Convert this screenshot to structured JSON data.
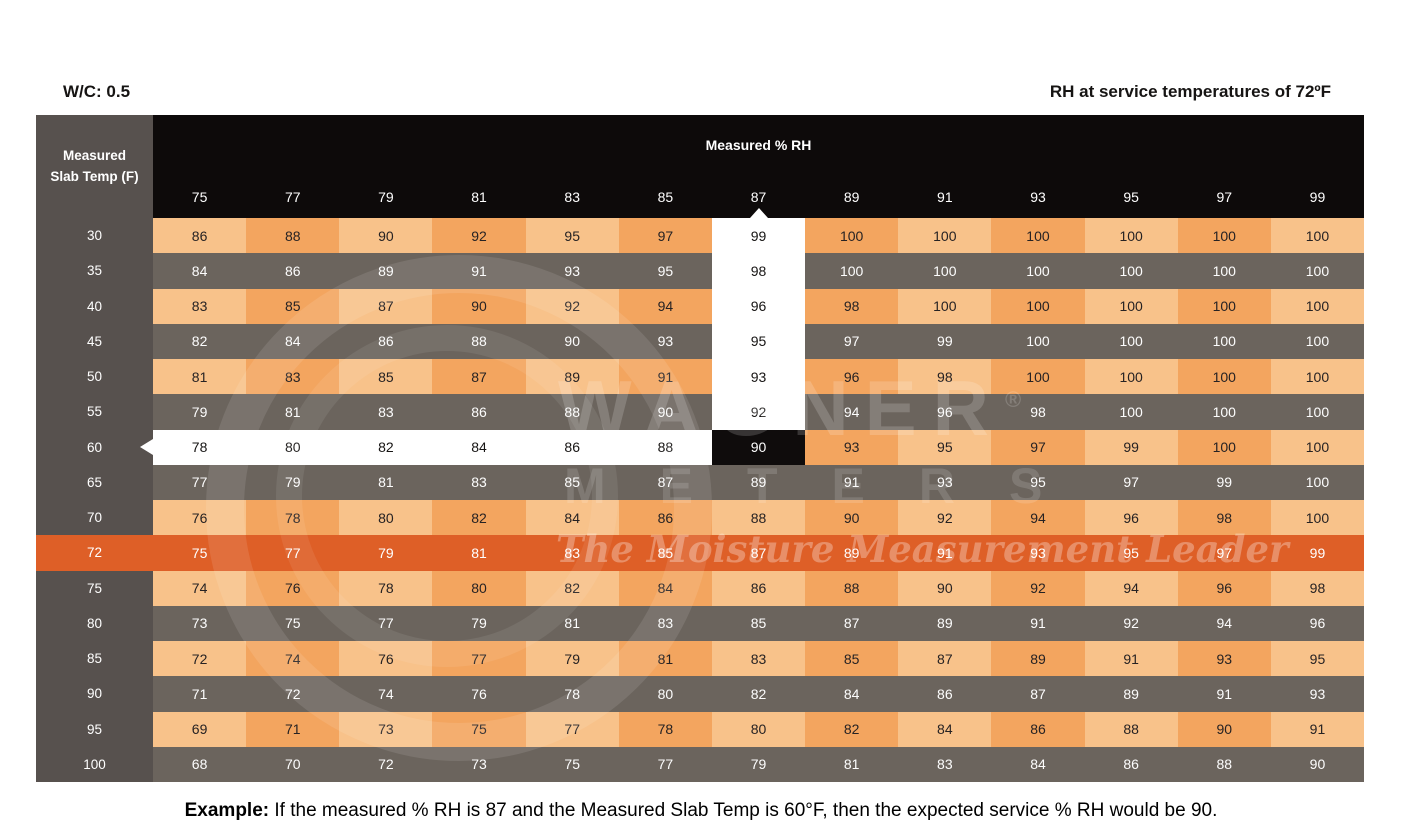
{
  "page": {
    "wc_label": "W/C: 0.5",
    "title_right": "RH at service temperatures of 72ºF"
  },
  "chart_data": {
    "type": "table",
    "title": "RH at service temperatures of 72ºF",
    "water_cement_ratio_label": "W/C: 0.5",
    "columns_group_label": "Measured % RH",
    "row_header_line1": "Measured",
    "row_header_line2": "Slab Temp (F)",
    "columns": [
      75,
      77,
      79,
      81,
      83,
      85,
      87,
      89,
      91,
      93,
      95,
      97,
      99
    ],
    "rows": [
      {
        "label": 30,
        "type": "orange",
        "values": [
          86,
          88,
          90,
          92,
          95,
          97,
          99,
          100,
          100,
          100,
          100,
          100,
          100
        ]
      },
      {
        "label": 35,
        "type": "gray",
        "values": [
          84,
          86,
          89,
          91,
          93,
          95,
          98,
          100,
          100,
          100,
          100,
          100,
          100
        ]
      },
      {
        "label": 40,
        "type": "orange",
        "values": [
          83,
          85,
          87,
          90,
          92,
          94,
          96,
          98,
          100,
          100,
          100,
          100,
          100
        ]
      },
      {
        "label": 45,
        "type": "gray",
        "values": [
          82,
          84,
          86,
          88,
          90,
          93,
          95,
          97,
          99,
          100,
          100,
          100,
          100
        ]
      },
      {
        "label": 50,
        "type": "orange",
        "values": [
          81,
          83,
          85,
          87,
          89,
          91,
          93,
          96,
          98,
          100,
          100,
          100,
          100
        ]
      },
      {
        "label": 55,
        "type": "gray",
        "values": [
          79,
          81,
          83,
          86,
          88,
          90,
          92,
          94,
          96,
          98,
          100,
          100,
          100
        ]
      },
      {
        "label": 60,
        "type": "orange",
        "values": [
          78,
          80,
          82,
          84,
          86,
          88,
          90,
          93,
          95,
          97,
          99,
          100,
          100
        ]
      },
      {
        "label": 65,
        "type": "gray",
        "values": [
          77,
          79,
          81,
          83,
          85,
          87,
          89,
          91,
          93,
          95,
          97,
          99,
          100
        ]
      },
      {
        "label": 70,
        "type": "orange",
        "values": [
          76,
          78,
          80,
          82,
          84,
          86,
          88,
          90,
          92,
          94,
          96,
          98,
          100
        ]
      },
      {
        "label": 72,
        "type": "highlight",
        "values": [
          75,
          77,
          79,
          81,
          83,
          85,
          87,
          89,
          91,
          93,
          95,
          97,
          99
        ]
      },
      {
        "label": 75,
        "type": "orange",
        "values": [
          74,
          76,
          78,
          80,
          82,
          84,
          86,
          88,
          90,
          92,
          94,
          96,
          98
        ]
      },
      {
        "label": 80,
        "type": "gray",
        "values": [
          73,
          75,
          77,
          79,
          81,
          83,
          85,
          87,
          89,
          91,
          92,
          94,
          96
        ]
      },
      {
        "label": 85,
        "type": "orange",
        "values": [
          72,
          74,
          76,
          77,
          79,
          81,
          83,
          85,
          87,
          89,
          91,
          93,
          95
        ]
      },
      {
        "label": 90,
        "type": "gray",
        "values": [
          71,
          72,
          74,
          76,
          78,
          80,
          82,
          84,
          86,
          87,
          89,
          91,
          93
        ]
      },
      {
        "label": 95,
        "type": "orange",
        "values": [
          69,
          71,
          73,
          75,
          77,
          78,
          80,
          82,
          84,
          86,
          88,
          90,
          91
        ]
      },
      {
        "label": 100,
        "type": "gray",
        "values": [
          68,
          70,
          72,
          73,
          75,
          77,
          79,
          81,
          83,
          84,
          86,
          88,
          90
        ]
      }
    ],
    "highlight": {
      "measured_rh_column": 87,
      "measured_slab_temp_row": 60,
      "result_value": 90,
      "service_temp_row": 72
    }
  },
  "watermark": {
    "brand_line1": "WAGNER",
    "brand_reg": "®",
    "brand_line2": "METERS",
    "tagline": "The Moisture Measurement Leader"
  },
  "example": {
    "bold": "Example:",
    "text": " If the measured % RH is 87 and the Measured Slab Temp is 60°F, then the expected service % RH would be 90."
  },
  "colors": {
    "cell_peach": "#f8c28a",
    "cell_orange": "#f3a55f",
    "cell_taupe": "#6b645d",
    "row_header_gray": "#57514e",
    "header_black": "#0d0a0a",
    "highlight_row_orange": "#de5f27",
    "highlight_white": "#ffffff",
    "result_cell_black": "#0f0c0c"
  }
}
